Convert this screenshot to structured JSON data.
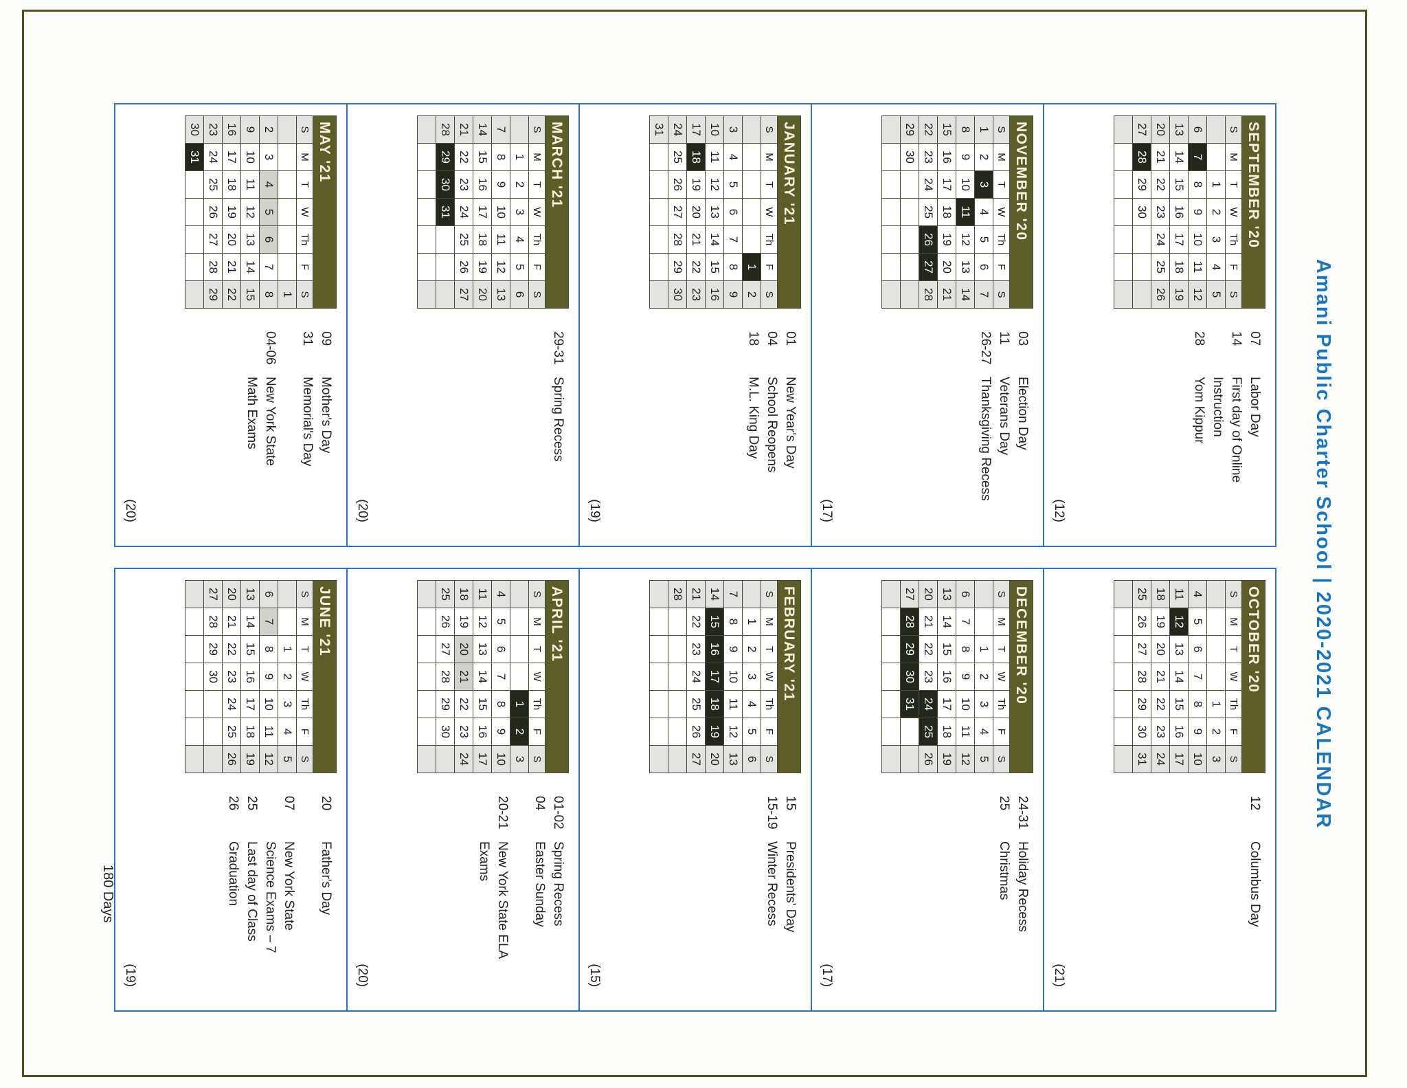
{
  "title": "Amani Public Charter School | 2020-2021 CALENDAR",
  "footer": {
    "total_days": "180 Days"
  },
  "dow": [
    "S",
    "M",
    "T",
    "W",
    "Th",
    "F",
    "S"
  ],
  "colors": {
    "title_blue": "#1b75bc",
    "block_border_blue": "#2e74b5",
    "banner_olive": "#5c5e2a",
    "banner_text": "#f6f3df",
    "weekend_gray": "#e3e3df",
    "holiday_black": "#23281c",
    "exam_gray": "#d2d2cd",
    "page_frame": "#575020"
  },
  "months": [
    {
      "id": "september",
      "name": "SEPTEMBER '20",
      "count": "(12)",
      "black": [
        7,
        28
      ],
      "gray": [],
      "weeks": [
        [
          "",
          "",
          "1",
          "2",
          "3",
          "4",
          "5"
        ],
        [
          "6",
          "7",
          "8",
          "9",
          "10",
          "11",
          "12"
        ],
        [
          "13",
          "14",
          "15",
          "16",
          "17",
          "18",
          "19"
        ],
        [
          "20",
          "21",
          "22",
          "23",
          "24",
          "25",
          "26"
        ],
        [
          "27",
          "28",
          "29",
          "30",
          "",
          "",
          ""
        ],
        [
          "",
          "",
          "",
          "",
          "",
          "",
          ""
        ]
      ],
      "events": [
        {
          "code": "07",
          "label": "Labor Day"
        },
        {
          "code": "14",
          "label": "First day of Online\nInstruction"
        },
        {
          "code": "28",
          "label": "Yom Kippur"
        }
      ]
    },
    {
      "id": "november",
      "name": "NOVEMBER '20",
      "count": "(17)",
      "black": [
        3,
        11,
        26,
        27
      ],
      "gray": [],
      "weeks": [
        [
          "1",
          "2",
          "3",
          "4",
          "5",
          "6",
          "7"
        ],
        [
          "8",
          "9",
          "10",
          "11",
          "12",
          "13",
          "14"
        ],
        [
          "15",
          "16",
          "17",
          "18",
          "19",
          "20",
          "21"
        ],
        [
          "22",
          "23",
          "24",
          "25",
          "26",
          "27",
          "28"
        ],
        [
          "29",
          "30",
          "",
          "",
          "",
          "",
          ""
        ],
        [
          "",
          "",
          "",
          "",
          "",
          "",
          ""
        ]
      ],
      "events": [
        {
          "code": "03",
          "label": "Election Day"
        },
        {
          "code": "11",
          "label": "Veterans Day"
        },
        {
          "code": "26-27",
          "label": "Thanksgiving Recess"
        }
      ]
    },
    {
      "id": "january",
      "name": "JANUARY '21",
      "count": "(19)",
      "black": [
        1,
        18
      ],
      "gray": [],
      "weeks": [
        [
          "",
          "",
          "",
          "",
          "",
          "1",
          "2"
        ],
        [
          "3",
          "4",
          "5",
          "6",
          "7",
          "8",
          "9"
        ],
        [
          "10",
          "11",
          "12",
          "13",
          "14",
          "15",
          "16"
        ],
        [
          "17",
          "18",
          "19",
          "20",
          "21",
          "22",
          "23"
        ],
        [
          "24",
          "25",
          "26",
          "27",
          "28",
          "29",
          "30"
        ],
        [
          "31",
          "",
          "",
          "",
          "",
          "",
          ""
        ]
      ],
      "events": [
        {
          "code": "01",
          "label": "New Year's Day"
        },
        {
          "code": "04",
          "label": "School Reopens"
        },
        {
          "code": "18",
          "label": "M.L. King Day"
        }
      ]
    },
    {
      "id": "march",
      "name": "MARCH '21",
      "count": "(20)",
      "black": [
        29,
        30,
        31
      ],
      "gray": [],
      "weeks": [
        [
          "",
          "1",
          "2",
          "3",
          "4",
          "5",
          "6"
        ],
        [
          "7",
          "8",
          "9",
          "10",
          "11",
          "12",
          "13"
        ],
        [
          "14",
          "15",
          "16",
          "17",
          "18",
          "19",
          "20"
        ],
        [
          "21",
          "22",
          "23",
          "24",
          "25",
          "26",
          "27"
        ],
        [
          "28",
          "29",
          "30",
          "31",
          "",
          "",
          ""
        ],
        [
          "",
          "",
          "",
          "",
          "",
          "",
          ""
        ]
      ],
      "events": [
        {
          "code": "29-31",
          "label": "Spring Recess"
        }
      ]
    },
    {
      "id": "may",
      "name": "MAY '21",
      "count": "(20)",
      "black": [
        31
      ],
      "gray": [
        4,
        5,
        6
      ],
      "weeks": [
        [
          "",
          "",
          "",
          "",
          "",
          "",
          "1"
        ],
        [
          "2",
          "3",
          "4",
          "5",
          "6",
          "7",
          "8"
        ],
        [
          "9",
          "10",
          "11",
          "12",
          "13",
          "14",
          "15"
        ],
        [
          "16",
          "17",
          "18",
          "19",
          "20",
          "21",
          "22"
        ],
        [
          "23",
          "24",
          "25",
          "26",
          "27",
          "28",
          "29"
        ],
        [
          "30",
          "31",
          "",
          "",
          "",
          "",
          ""
        ]
      ],
      "events": [
        {
          "code": "09",
          "label": "Mother's Day"
        },
        {
          "code": "31",
          "label": "Memorial's Day"
        },
        {
          "code": "",
          "label": ""
        },
        {
          "code": "04-06",
          "label": "New York State\nMath Exams"
        }
      ]
    },
    {
      "id": "october",
      "name": "OCTOBER '20",
      "count": "(21)",
      "black": [
        12
      ],
      "gray": [],
      "weeks": [
        [
          "",
          "",
          "",
          "",
          "1",
          "2",
          "3"
        ],
        [
          "4",
          "5",
          "6",
          "7",
          "8",
          "9",
          "10"
        ],
        [
          "11",
          "12",
          "13",
          "14",
          "15",
          "16",
          "17"
        ],
        [
          "18",
          "19",
          "20",
          "21",
          "22",
          "23",
          "24"
        ],
        [
          "25",
          "26",
          "27",
          "28",
          "29",
          "30",
          "31"
        ],
        [
          "",
          "",
          "",
          "",
          "",
          "",
          ""
        ]
      ],
      "events": [
        {
          "code": "12",
          "label": "Columbus Day"
        }
      ]
    },
    {
      "id": "december",
      "name": "DECEMBER '20",
      "count": "(17)",
      "black": [
        24,
        25,
        28,
        29,
        30,
        31
      ],
      "gray": [],
      "weeks": [
        [
          "",
          "",
          "1",
          "2",
          "3",
          "4",
          "5"
        ],
        [
          "6",
          "7",
          "8",
          "9",
          "10",
          "11",
          "12"
        ],
        [
          "13",
          "14",
          "15",
          "16",
          "17",
          "18",
          "19"
        ],
        [
          "20",
          "21",
          "22",
          "23",
          "24",
          "25",
          "26"
        ],
        [
          "27",
          "28",
          "29",
          "30",
          "31",
          "",
          ""
        ],
        [
          "",
          "",
          "",
          "",
          "",
          "",
          ""
        ]
      ],
      "events": [
        {
          "code": "24-31",
          "label": "Holiday Recess"
        },
        {
          "code": "25",
          "label": "Christmas"
        }
      ]
    },
    {
      "id": "february",
      "name": "FEBRUARY '21",
      "count": "(15)",
      "black": [
        15,
        16,
        17,
        18,
        19
      ],
      "gray": [],
      "weeks": [
        [
          "",
          "1",
          "2",
          "3",
          "4",
          "5",
          "6"
        ],
        [
          "7",
          "8",
          "9",
          "10",
          "11",
          "12",
          "13"
        ],
        [
          "14",
          "15",
          "16",
          "17",
          "18",
          "19",
          "20"
        ],
        [
          "21",
          "22",
          "23",
          "24",
          "25",
          "26",
          "27"
        ],
        [
          "28",
          "",
          "",
          "",
          "",
          "",
          ""
        ],
        [
          "",
          "",
          "",
          "",
          "",
          "",
          ""
        ]
      ],
      "events": [
        {
          "code": "15",
          "label": "Presidents' Day"
        },
        {
          "code": "15-19",
          "label": "Winter Recess"
        }
      ]
    },
    {
      "id": "april",
      "name": "APRIL '21",
      "count": "(20)",
      "black": [
        1,
        2
      ],
      "gray": [
        20,
        21
      ],
      "weeks": [
        [
          "",
          "",
          "",
          "",
          "1",
          "2",
          "3"
        ],
        [
          "4",
          "5",
          "6",
          "7",
          "8",
          "9",
          "10"
        ],
        [
          "11",
          "12",
          "13",
          "14",
          "15",
          "16",
          "17"
        ],
        [
          "18",
          "19",
          "20",
          "21",
          "22",
          "23",
          "24"
        ],
        [
          "25",
          "26",
          "27",
          "28",
          "29",
          "30",
          ""
        ],
        [
          "",
          "",
          "",
          "",
          "",
          "",
          ""
        ]
      ],
      "events": [
        {
          "code": "01-02",
          "label": "Spring Recess"
        },
        {
          "code": "04",
          "label": "Easter Sunday"
        },
        {
          "code": "",
          "label": ""
        },
        {
          "code": "20-21",
          "label": "New York State ELA\nExams"
        }
      ]
    },
    {
      "id": "june",
      "name": "JUNE '21",
      "count": "(19)",
      "black": [],
      "gray": [
        7
      ],
      "weeks": [
        [
          "",
          "",
          "1",
          "2",
          "3",
          "4",
          "5"
        ],
        [
          "6",
          "7",
          "8",
          "9",
          "10",
          "11",
          "12"
        ],
        [
          "13",
          "14",
          "15",
          "16",
          "17",
          "18",
          "19"
        ],
        [
          "20",
          "21",
          "22",
          "23",
          "24",
          "25",
          "26"
        ],
        [
          "27",
          "28",
          "29",
          "30",
          "",
          "",
          ""
        ],
        [
          "",
          "",
          "",
          "",
          "",
          "",
          ""
        ]
      ],
      "events": [
        {
          "code": "20",
          "label": "Father's Day"
        },
        {
          "code": "",
          "label": ""
        },
        {
          "code": "07",
          "label": "New York State\nScience Exams – 7"
        },
        {
          "code": "25",
          "label": "Last day of Class"
        },
        {
          "code": "26",
          "label": "Graduation"
        }
      ]
    }
  ]
}
